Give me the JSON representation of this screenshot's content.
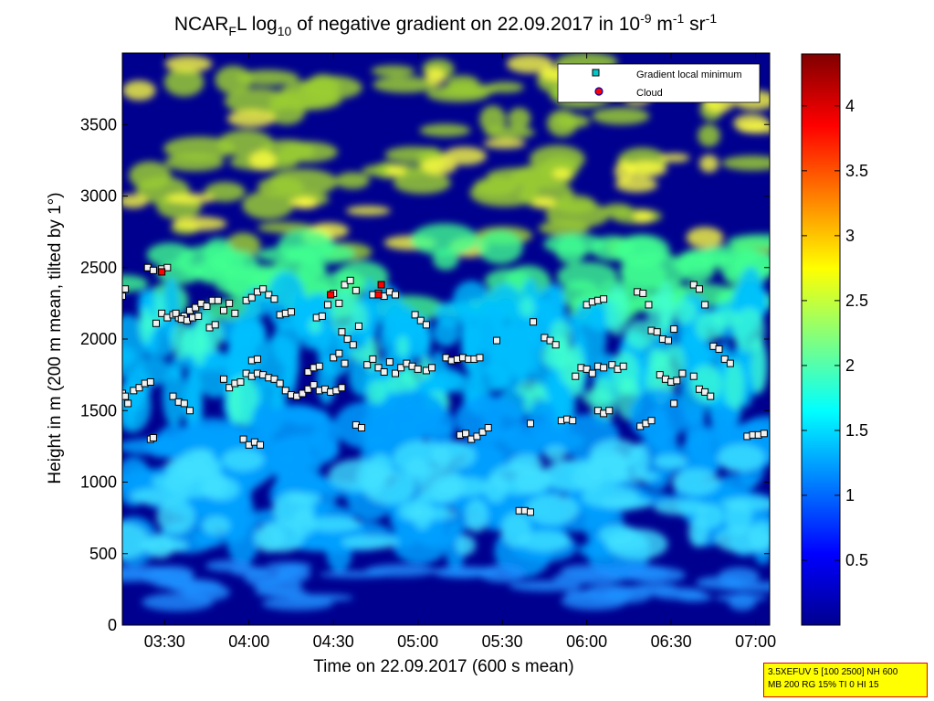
{
  "chart_data": {
    "type": "heatmap",
    "title": {
      "prefix": "NCAR",
      "sub1": "F",
      "mid": "L log",
      "sub2": "10",
      "rest": " of negative gradient on 22.09.2017 in 10",
      "sup1": "-9",
      "unit1": " m",
      "sup2": "-1",
      "unit2": " sr",
      "sup3": "-1"
    },
    "xlabel": "Time on 22.09.2017 (600 s mean)",
    "ylabel": "Height in m (200 m mean, tilted by 1°)",
    "x_ticks": [
      "03:30",
      "04:00",
      "04:30",
      "05:00",
      "05:30",
      "06:00",
      "06:30",
      "07:00"
    ],
    "x_tick_minutes": [
      210,
      240,
      270,
      300,
      330,
      360,
      390,
      420
    ],
    "xlim_minutes": [
      195,
      425
    ],
    "y_ticks": [
      0,
      500,
      1000,
      1500,
      2000,
      2500,
      3000,
      3500
    ],
    "ylim": [
      0,
      4000
    ],
    "colorbar": {
      "ticks": [
        0.5,
        1,
        1.5,
        2,
        2.5,
        3,
        3.5,
        4
      ],
      "range": [
        0,
        4.4
      ],
      "colormap": "jet"
    },
    "colors": {
      "background_dark_blue": "#00008f",
      "cyan": "#00ffff",
      "yellow": "#ffff00",
      "red": "#ff0000",
      "dark_red": "#800000"
    },
    "legend": {
      "position": "top-right",
      "entries": [
        "Gradient local minimum",
        "Cloud"
      ]
    },
    "series": [
      {
        "name": "Gradient local minimum",
        "points": [
          [
            195,
            1620
          ],
          [
            196,
            1600
          ],
          [
            197,
            1550
          ],
          [
            199,
            1640
          ],
          [
            201,
            1660
          ],
          [
            203,
            1690
          ],
          [
            205,
            1700
          ],
          [
            195,
            2320
          ],
          [
            196,
            2350
          ],
          [
            195,
            2300
          ],
          [
            204,
            2500
          ],
          [
            206,
            2480
          ],
          [
            209,
            2490
          ],
          [
            211,
            2500
          ],
          [
            207,
            2110
          ],
          [
            209,
            2180
          ],
          [
            211,
            2150
          ],
          [
            205,
            1300
          ],
          [
            206,
            1310
          ],
          [
            213,
            2170
          ],
          [
            215,
            2150
          ],
          [
            217,
            2160
          ],
          [
            219,
            2200
          ],
          [
            221,
            2220
          ],
          [
            223,
            2250
          ],
          [
            225,
            2230
          ],
          [
            227,
            2270
          ],
          [
            214,
            2180
          ],
          [
            216,
            2140
          ],
          [
            218,
            2130
          ],
          [
            220,
            2150
          ],
          [
            222,
            2160
          ],
          [
            213,
            1600
          ],
          [
            215,
            1560
          ],
          [
            217,
            1550
          ],
          [
            219,
            1500
          ],
          [
            229,
            2270
          ],
          [
            231,
            2200
          ],
          [
            233,
            2250
          ],
          [
            235,
            2180
          ],
          [
            226,
            2080
          ],
          [
            228,
            2100
          ],
          [
            231,
            1720
          ],
          [
            233,
            1660
          ],
          [
            235,
            1690
          ],
          [
            237,
            1700
          ],
          [
            239,
            1760
          ],
          [
            241,
            1740
          ],
          [
            243,
            1760
          ],
          [
            245,
            1750
          ],
          [
            247,
            1730
          ],
          [
            249,
            1720
          ],
          [
            251,
            1690
          ],
          [
            238,
            1300
          ],
          [
            240,
            1260
          ],
          [
            242,
            1280
          ],
          [
            244,
            1260
          ],
          [
            241,
            1850
          ],
          [
            243,
            1860
          ],
          [
            239,
            2270
          ],
          [
            241,
            2290
          ],
          [
            243,
            2330
          ],
          [
            245,
            2350
          ],
          [
            247,
            2310
          ],
          [
            249,
            2280
          ],
          [
            251,
            2170
          ],
          [
            253,
            2180
          ],
          [
            255,
            2190
          ],
          [
            253,
            1640
          ],
          [
            255,
            1610
          ],
          [
            257,
            1600
          ],
          [
            259,
            1620
          ],
          [
            261,
            1650
          ],
          [
            263,
            1680
          ],
          [
            261,
            1770
          ],
          [
            263,
            1800
          ],
          [
            265,
            1810
          ],
          [
            264,
            2150
          ],
          [
            266,
            2160
          ],
          [
            268,
            2240
          ],
          [
            270,
            2320
          ],
          [
            272,
            2250
          ],
          [
            274,
            2380
          ],
          [
            276,
            2410
          ],
          [
            278,
            2340
          ],
          [
            265,
            1640
          ],
          [
            267,
            1650
          ],
          [
            269,
            1630
          ],
          [
            271,
            1640
          ],
          [
            273,
            1660
          ],
          [
            270,
            1870
          ],
          [
            272,
            1900
          ],
          [
            274,
            1830
          ],
          [
            273,
            2050
          ],
          [
            275,
            2000
          ],
          [
            277,
            1960
          ],
          [
            279,
            2090
          ],
          [
            278,
            1400
          ],
          [
            280,
            1380
          ],
          [
            282,
            1820
          ],
          [
            284,
            1860
          ],
          [
            286,
            1800
          ],
          [
            288,
            1770
          ],
          [
            290,
            1840
          ],
          [
            292,
            1760
          ],
          [
            294,
            1800
          ],
          [
            296,
            1830
          ],
          [
            298,
            1810
          ],
          [
            300,
            1790
          ],
          [
            284,
            2310
          ],
          [
            286,
            2320
          ],
          [
            288,
            2300
          ],
          [
            290,
            2330
          ],
          [
            292,
            2310
          ],
          [
            299,
            2170
          ],
          [
            301,
            2130
          ],
          [
            303,
            2100
          ],
          [
            303,
            1780
          ],
          [
            305,
            1800
          ],
          [
            310,
            1870
          ],
          [
            312,
            1850
          ],
          [
            314,
            1860
          ],
          [
            316,
            1870
          ],
          [
            318,
            1860
          ],
          [
            315,
            1330
          ],
          [
            317,
            1340
          ],
          [
            319,
            1300
          ],
          [
            321,
            1320
          ],
          [
            323,
            1350
          ],
          [
            325,
            1380
          ],
          [
            320,
            1860
          ],
          [
            322,
            1870
          ],
          [
            328,
            1990
          ],
          [
            336,
            800
          ],
          [
            338,
            800
          ],
          [
            340,
            790
          ],
          [
            340,
            1410
          ],
          [
            341,
            2120
          ],
          [
            345,
            2010
          ],
          [
            347,
            1990
          ],
          [
            349,
            1960
          ],
          [
            351,
            1430
          ],
          [
            353,
            1440
          ],
          [
            355,
            1430
          ],
          [
            356,
            1740
          ],
          [
            358,
            1800
          ],
          [
            360,
            1790
          ],
          [
            362,
            1760
          ],
          [
            364,
            1810
          ],
          [
            366,
            1800
          ],
          [
            360,
            2240
          ],
          [
            362,
            2260
          ],
          [
            364,
            2270
          ],
          [
            366,
            2280
          ],
          [
            364,
            1500
          ],
          [
            366,
            1480
          ],
          [
            368,
            1500
          ],
          [
            369,
            1820
          ],
          [
            371,
            1790
          ],
          [
            373,
            1810
          ],
          [
            378,
            2330
          ],
          [
            380,
            2320
          ],
          [
            382,
            2240
          ],
          [
            379,
            1390
          ],
          [
            381,
            1410
          ],
          [
            383,
            1430
          ],
          [
            383,
            2060
          ],
          [
            385,
            2050
          ],
          [
            387,
            2000
          ],
          [
            389,
            1990
          ],
          [
            391,
            2070
          ],
          [
            386,
            1750
          ],
          [
            388,
            1720
          ],
          [
            390,
            1700
          ],
          [
            392,
            1710
          ],
          [
            394,
            1760
          ],
          [
            391,
            1550
          ],
          [
            398,
            2380
          ],
          [
            400,
            2350
          ],
          [
            402,
            2240
          ],
          [
            398,
            1740
          ],
          [
            400,
            1650
          ],
          [
            402,
            1630
          ],
          [
            404,
            1600
          ],
          [
            405,
            1950
          ],
          [
            407,
            1930
          ],
          [
            409,
            1860
          ],
          [
            411,
            1830
          ],
          [
            417,
            1320
          ],
          [
            419,
            1330
          ],
          [
            421,
            1330
          ],
          [
            423,
            1340
          ]
        ]
      },
      {
        "name": "Cloud",
        "points": [
          [
            209,
            2470
          ],
          [
            269,
            2310
          ],
          [
            286,
            2310
          ],
          [
            287,
            2380
          ]
        ]
      }
    ]
  },
  "info_box": {
    "line1": "3.5XEFUV 5 [100 2500] NH 600",
    "line2": "MB 200 RG 15% TI 0 HI 15"
  }
}
